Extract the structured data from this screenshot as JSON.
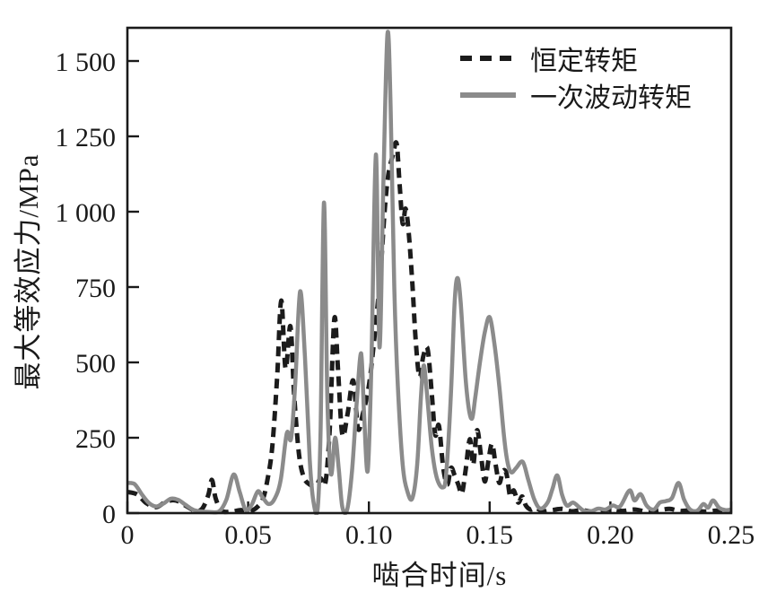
{
  "figure": {
    "background": "#ffffff",
    "axis_color": "#1a1a1a"
  },
  "chart_data": {
    "type": "line",
    "title": "",
    "xlabel": "啮合时间/s",
    "ylabel": "最大等效应力/MPa",
    "xlim": [
      0,
      0.25
    ],
    "ylim": [
      0,
      1600
    ],
    "grid": false,
    "legend_position": "top-right-inside",
    "x_ticks": [
      {
        "t": 0,
        "label": "0"
      },
      {
        "t": 0.05,
        "label": "0.05"
      },
      {
        "t": 0.1,
        "label": "0.10"
      },
      {
        "t": 0.15,
        "label": "0.15"
      },
      {
        "t": 0.2,
        "label": "0.20"
      },
      {
        "t": 0.25,
        "label": "0.25"
      }
    ],
    "y_ticks": [
      {
        "v": 0,
        "label": "0"
      },
      {
        "v": 250,
        "label": "250"
      },
      {
        "v": 500,
        "label": "500"
      },
      {
        "v": 750,
        "label": "750"
      },
      {
        "v": 1000,
        "label": "1 000"
      },
      {
        "v": 1250,
        "label": "1 250"
      },
      {
        "v": 1500,
        "label": "1 500"
      }
    ],
    "series": [
      {
        "name": "恒定转矩",
        "line_style": "dashed",
        "color": "#1b1b1b",
        "points": [
          [
            0,
            70
          ],
          [
            0.004,
            62
          ],
          [
            0.008,
            32
          ],
          [
            0.012,
            20
          ],
          [
            0.016,
            38
          ],
          [
            0.02,
            42
          ],
          [
            0.024,
            25
          ],
          [
            0.028,
            8
          ],
          [
            0.031,
            15
          ],
          [
            0.0335,
            60
          ],
          [
            0.035,
            110
          ],
          [
            0.0365,
            50
          ],
          [
            0.039,
            8
          ],
          [
            0.043,
            5
          ],
          [
            0.047,
            10
          ],
          [
            0.05,
            6
          ],
          [
            0.053,
            15
          ],
          [
            0.056,
            45
          ],
          [
            0.058,
            110
          ],
          [
            0.06,
            220
          ],
          [
            0.062,
            450
          ],
          [
            0.0637,
            705
          ],
          [
            0.0655,
            480
          ],
          [
            0.0675,
            620
          ],
          [
            0.069,
            400
          ],
          [
            0.071,
            200
          ],
          [
            0.073,
            120
          ],
          [
            0.0755,
            95
          ],
          [
            0.078,
            90
          ],
          [
            0.08,
            115
          ],
          [
            0.082,
            100
          ],
          [
            0.0838,
            280
          ],
          [
            0.0857,
            645
          ],
          [
            0.0872,
            480
          ],
          [
            0.089,
            260
          ],
          [
            0.0912,
            330
          ],
          [
            0.0935,
            440
          ],
          [
            0.0955,
            280
          ],
          [
            0.0975,
            330
          ],
          [
            0.099,
            380
          ],
          [
            0.1005,
            450
          ],
          [
            0.102,
            560
          ],
          [
            0.1035,
            680
          ],
          [
            0.105,
            820
          ],
          [
            0.1065,
            1000
          ],
          [
            0.108,
            1120
          ],
          [
            0.11,
            1190
          ],
          [
            0.1115,
            1225
          ],
          [
            0.1128,
            1080
          ],
          [
            0.114,
            960
          ],
          [
            0.1152,
            1010
          ],
          [
            0.1165,
            930
          ],
          [
            0.118,
            760
          ],
          [
            0.1195,
            560
          ],
          [
            0.121,
            450
          ],
          [
            0.1225,
            520
          ],
          [
            0.1243,
            545
          ],
          [
            0.126,
            400
          ],
          [
            0.1275,
            260
          ],
          [
            0.129,
            290
          ],
          [
            0.1308,
            150
          ],
          [
            0.1325,
            95
          ],
          [
            0.134,
            150
          ],
          [
            0.1355,
            125
          ],
          [
            0.137,
            95
          ],
          [
            0.1385,
            65
          ],
          [
            0.14,
            140
          ],
          [
            0.1418,
            245
          ],
          [
            0.1432,
            160
          ],
          [
            0.1448,
            275
          ],
          [
            0.1465,
            185
          ],
          [
            0.148,
            105
          ],
          [
            0.1495,
            175
          ],
          [
            0.151,
            230
          ],
          [
            0.1525,
            160
          ],
          [
            0.154,
            100
          ],
          [
            0.1555,
            140
          ],
          [
            0.157,
            130
          ],
          [
            0.1585,
            55
          ],
          [
            0.16,
            75
          ],
          [
            0.1618,
            35
          ],
          [
            0.1635,
            55
          ],
          [
            0.165,
            25
          ],
          [
            0.167,
            12
          ],
          [
            0.169,
            18
          ],
          [
            0.172,
            6
          ],
          [
            0.176,
            10
          ],
          [
            0.18,
            14
          ],
          [
            0.184,
            6
          ],
          [
            0.188,
            10
          ],
          [
            0.192,
            5
          ],
          [
            0.196,
            8
          ],
          [
            0.2,
            12
          ],
          [
            0.205,
            7
          ],
          [
            0.21,
            12
          ],
          [
            0.215,
            5
          ],
          [
            0.22,
            9
          ],
          [
            0.2245,
            14
          ],
          [
            0.229,
            7
          ],
          [
            0.234,
            10
          ],
          [
            0.239,
            5
          ],
          [
            0.244,
            8
          ],
          [
            0.248,
            6
          ],
          [
            0.25,
            8
          ]
        ]
      },
      {
        "name": "一次波动转矩",
        "line_style": "solid",
        "color": "#8b8b8b",
        "points": [
          [
            0,
            100
          ],
          [
            0.003,
            96
          ],
          [
            0.006,
            62
          ],
          [
            0.009,
            33
          ],
          [
            0.012,
            22
          ],
          [
            0.015,
            32
          ],
          [
            0.018,
            48
          ],
          [
            0.021,
            44
          ],
          [
            0.024,
            28
          ],
          [
            0.027,
            12
          ],
          [
            0.03,
            6
          ],
          [
            0.034,
            4
          ],
          [
            0.038,
            6
          ],
          [
            0.041,
            45
          ],
          [
            0.044,
            128
          ],
          [
            0.0465,
            70
          ],
          [
            0.049,
            10
          ],
          [
            0.0515,
            28
          ],
          [
            0.054,
            72
          ],
          [
            0.056,
            52
          ],
          [
            0.0585,
            30
          ],
          [
            0.061,
            48
          ],
          [
            0.0635,
            110
          ],
          [
            0.066,
            265
          ],
          [
            0.0678,
            248
          ],
          [
            0.0695,
            430
          ],
          [
            0.0715,
            735
          ],
          [
            0.0735,
            520
          ],
          [
            0.0755,
            180
          ],
          [
            0.077,
            40
          ],
          [
            0.0788,
            15
          ],
          [
            0.08,
            280
          ],
          [
            0.0814,
            1030
          ],
          [
            0.0828,
            380
          ],
          [
            0.0843,
            130
          ],
          [
            0.086,
            250
          ],
          [
            0.0875,
            150
          ],
          [
            0.089,
            20
          ],
          [
            0.091,
            12
          ],
          [
            0.093,
            140
          ],
          [
            0.095,
            370
          ],
          [
            0.0968,
            530
          ],
          [
            0.098,
            330
          ],
          [
            0.0995,
            140
          ],
          [
            0.101,
            480
          ],
          [
            0.1029,
            1190
          ],
          [
            0.1044,
            550
          ],
          [
            0.106,
            1100
          ],
          [
            0.1077,
            1590
          ],
          [
            0.109,
            1350
          ],
          [
            0.1105,
            750
          ],
          [
            0.112,
            420
          ],
          [
            0.114,
            160
          ],
          [
            0.116,
            70
          ],
          [
            0.118,
            50
          ],
          [
            0.12,
            160
          ],
          [
            0.1215,
            380
          ],
          [
            0.1227,
            490
          ],
          [
            0.124,
            400
          ],
          [
            0.126,
            220
          ],
          [
            0.128,
            120
          ],
          [
            0.1305,
            85
          ],
          [
            0.132,
            130
          ],
          [
            0.134,
            400
          ],
          [
            0.1355,
            700
          ],
          [
            0.1367,
            780
          ],
          [
            0.138,
            700
          ],
          [
            0.14,
            450
          ],
          [
            0.1415,
            340
          ],
          [
            0.1428,
            315
          ],
          [
            0.144,
            380
          ],
          [
            0.146,
            500
          ],
          [
            0.148,
            600
          ],
          [
            0.15,
            650
          ],
          [
            0.152,
            560
          ],
          [
            0.154,
            420
          ],
          [
            0.156,
            250
          ],
          [
            0.1575,
            165
          ],
          [
            0.159,
            135
          ],
          [
            0.161,
            150
          ],
          [
            0.1637,
            170
          ],
          [
            0.166,
            110
          ],
          [
            0.1685,
            45
          ],
          [
            0.171,
            15
          ],
          [
            0.174,
            35
          ],
          [
            0.176,
            80
          ],
          [
            0.178,
            125
          ],
          [
            0.18,
            60
          ],
          [
            0.182,
            25
          ],
          [
            0.1845,
            35
          ],
          [
            0.187,
            20
          ],
          [
            0.189,
            8
          ],
          [
            0.192,
            6
          ],
          [
            0.195,
            15
          ],
          [
            0.198,
            12
          ],
          [
            0.201,
            25
          ],
          [
            0.204,
            22
          ],
          [
            0.2079,
            75
          ],
          [
            0.21,
            42
          ],
          [
            0.2125,
            63
          ],
          [
            0.215,
            25
          ],
          [
            0.218,
            12
          ],
          [
            0.2205,
            35
          ],
          [
            0.223,
            40
          ],
          [
            0.2255,
            50
          ],
          [
            0.2282,
            100
          ],
          [
            0.2305,
            45
          ],
          [
            0.233,
            12
          ],
          [
            0.236,
            8
          ],
          [
            0.2385,
            30
          ],
          [
            0.2405,
            18
          ],
          [
            0.2425,
            42
          ],
          [
            0.245,
            18
          ],
          [
            0.2475,
            10
          ],
          [
            0.25,
            12
          ]
        ]
      }
    ]
  }
}
